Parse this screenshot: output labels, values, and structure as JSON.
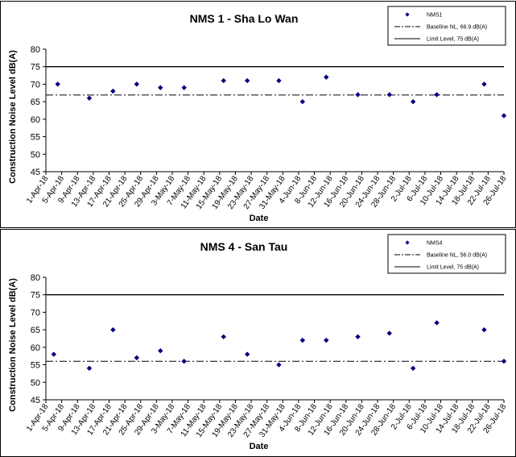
{
  "chart_data": [
    {
      "type": "scatter",
      "title": "NMS 1 - Sha Lo Wan",
      "xlabel": "Date",
      "ylabel": "Construction Noise Level dB(A)",
      "ylim": [
        45,
        80
      ],
      "yticks": [
        45,
        50,
        55,
        60,
        65,
        70,
        75,
        80
      ],
      "x_tick_labels": [
        "1-Apr-18",
        "5-Apr-18",
        "9-Apr-18",
        "13-Apr-18",
        "17-Apr-18",
        "21-Apr-18",
        "25-Apr-18",
        "29-Apr-18",
        "3-May-18",
        "7-May-18",
        "11-May-18",
        "15-May-18",
        "19-May-18",
        "23-May-18",
        "27-May-18",
        "31-May-18",
        "4-Jun-18",
        "8-Jun-18",
        "12-Jun-18",
        "16-Jun-18",
        "20-Jun-18",
        "24-Jun-18",
        "28-Jun-18",
        "2-Jul-18",
        "6-Jul-18",
        "10-Jul-18",
        "14-Jul-18",
        "18-Jul-18",
        "22-Jul-18",
        "26-Jul-18"
      ],
      "grid": false,
      "legend_position": "top-right",
      "series": [
        {
          "name": "NMS1",
          "color": "#000080",
          "marker": "diamond",
          "points": [
            {
              "x": "4-Apr-18",
              "y": 70
            },
            {
              "x": "12-Apr-18",
              "y": 66
            },
            {
              "x": "18-Apr-18",
              "y": 68
            },
            {
              "x": "24-Apr-18",
              "y": 70
            },
            {
              "x": "30-Apr-18",
              "y": 69
            },
            {
              "x": "6-May-18",
              "y": 69
            },
            {
              "x": "16-May-18",
              "y": 71
            },
            {
              "x": "22-May-18",
              "y": 71
            },
            {
              "x": "30-May-18",
              "y": 71
            },
            {
              "x": "5-Jun-18",
              "y": 65
            },
            {
              "x": "11-Jun-18",
              "y": 72
            },
            {
              "x": "19-Jun-18",
              "y": 67
            },
            {
              "x": "27-Jun-18",
              "y": 67
            },
            {
              "x": "3-Jul-18",
              "y": 65
            },
            {
              "x": "9-Jul-18",
              "y": 67
            },
            {
              "x": "21-Jul-18",
              "y": 70
            },
            {
              "x": "26-Jul-18",
              "y": 61
            }
          ]
        }
      ],
      "reference_lines": [
        {
          "name": "Baseline NL, 66.9 dB(A)",
          "value": 66.9,
          "style": "dash-dot"
        },
        {
          "name": "Limit Level, 75 dB(A)",
          "value": 75,
          "style": "solid"
        }
      ]
    },
    {
      "type": "scatter",
      "title": "NMS 4 - San Tau",
      "xlabel": "Date",
      "ylabel": "Construction Noise Level dB(A)",
      "ylim": [
        45,
        80
      ],
      "yticks": [
        45,
        50,
        55,
        60,
        65,
        70,
        75,
        80
      ],
      "x_tick_labels": [
        "1-Apr-18",
        "5-Apr-18",
        "9-Apr-18",
        "13-Apr-18",
        "17-Apr-18",
        "21-Apr-18",
        "25-Apr-18",
        "29-Apr-18",
        "3-May-18",
        "7-May-18",
        "11-May-18",
        "15-May-18",
        "19-May-18",
        "23-May-18",
        "27-May-18",
        "31-May-18",
        "4-Jun-18",
        "8-Jun-18",
        "12-Jun-18",
        "16-Jun-18",
        "20-Jun-18",
        "24-Jun-18",
        "28-Jun-18",
        "2-Jul-18",
        "6-Jul-18",
        "10-Jul-18",
        "14-Jul-18",
        "18-Jul-18",
        "22-Jul-18",
        "26-Jul-18"
      ],
      "grid": false,
      "legend_position": "top-right",
      "series": [
        {
          "name": "NMS4",
          "color": "#000080",
          "marker": "diamond",
          "points": [
            {
              "x": "3-Apr-18",
              "y": 58
            },
            {
              "x": "12-Apr-18",
              "y": 54
            },
            {
              "x": "18-Apr-18",
              "y": 65
            },
            {
              "x": "24-Apr-18",
              "y": 57
            },
            {
              "x": "30-Apr-18",
              "y": 59
            },
            {
              "x": "6-May-18",
              "y": 56
            },
            {
              "x": "16-May-18",
              "y": 63
            },
            {
              "x": "22-May-18",
              "y": 58
            },
            {
              "x": "30-May-18",
              "y": 55
            },
            {
              "x": "5-Jun-18",
              "y": 62
            },
            {
              "x": "11-Jun-18",
              "y": 62
            },
            {
              "x": "19-Jun-18",
              "y": 63
            },
            {
              "x": "27-Jun-18",
              "y": 64
            },
            {
              "x": "3-Jul-18",
              "y": 54
            },
            {
              "x": "9-Jul-18",
              "y": 67
            },
            {
              "x": "21-Jul-18",
              "y": 65
            },
            {
              "x": "26-Jul-18",
              "y": 56
            }
          ]
        }
      ],
      "reference_lines": [
        {
          "name": "Baseline NL, 56.0 dB(A)",
          "value": 56.0,
          "style": "dash-dot"
        },
        {
          "name": "Limit Level, 75 dB(A)",
          "value": 75,
          "style": "solid"
        }
      ]
    }
  ]
}
